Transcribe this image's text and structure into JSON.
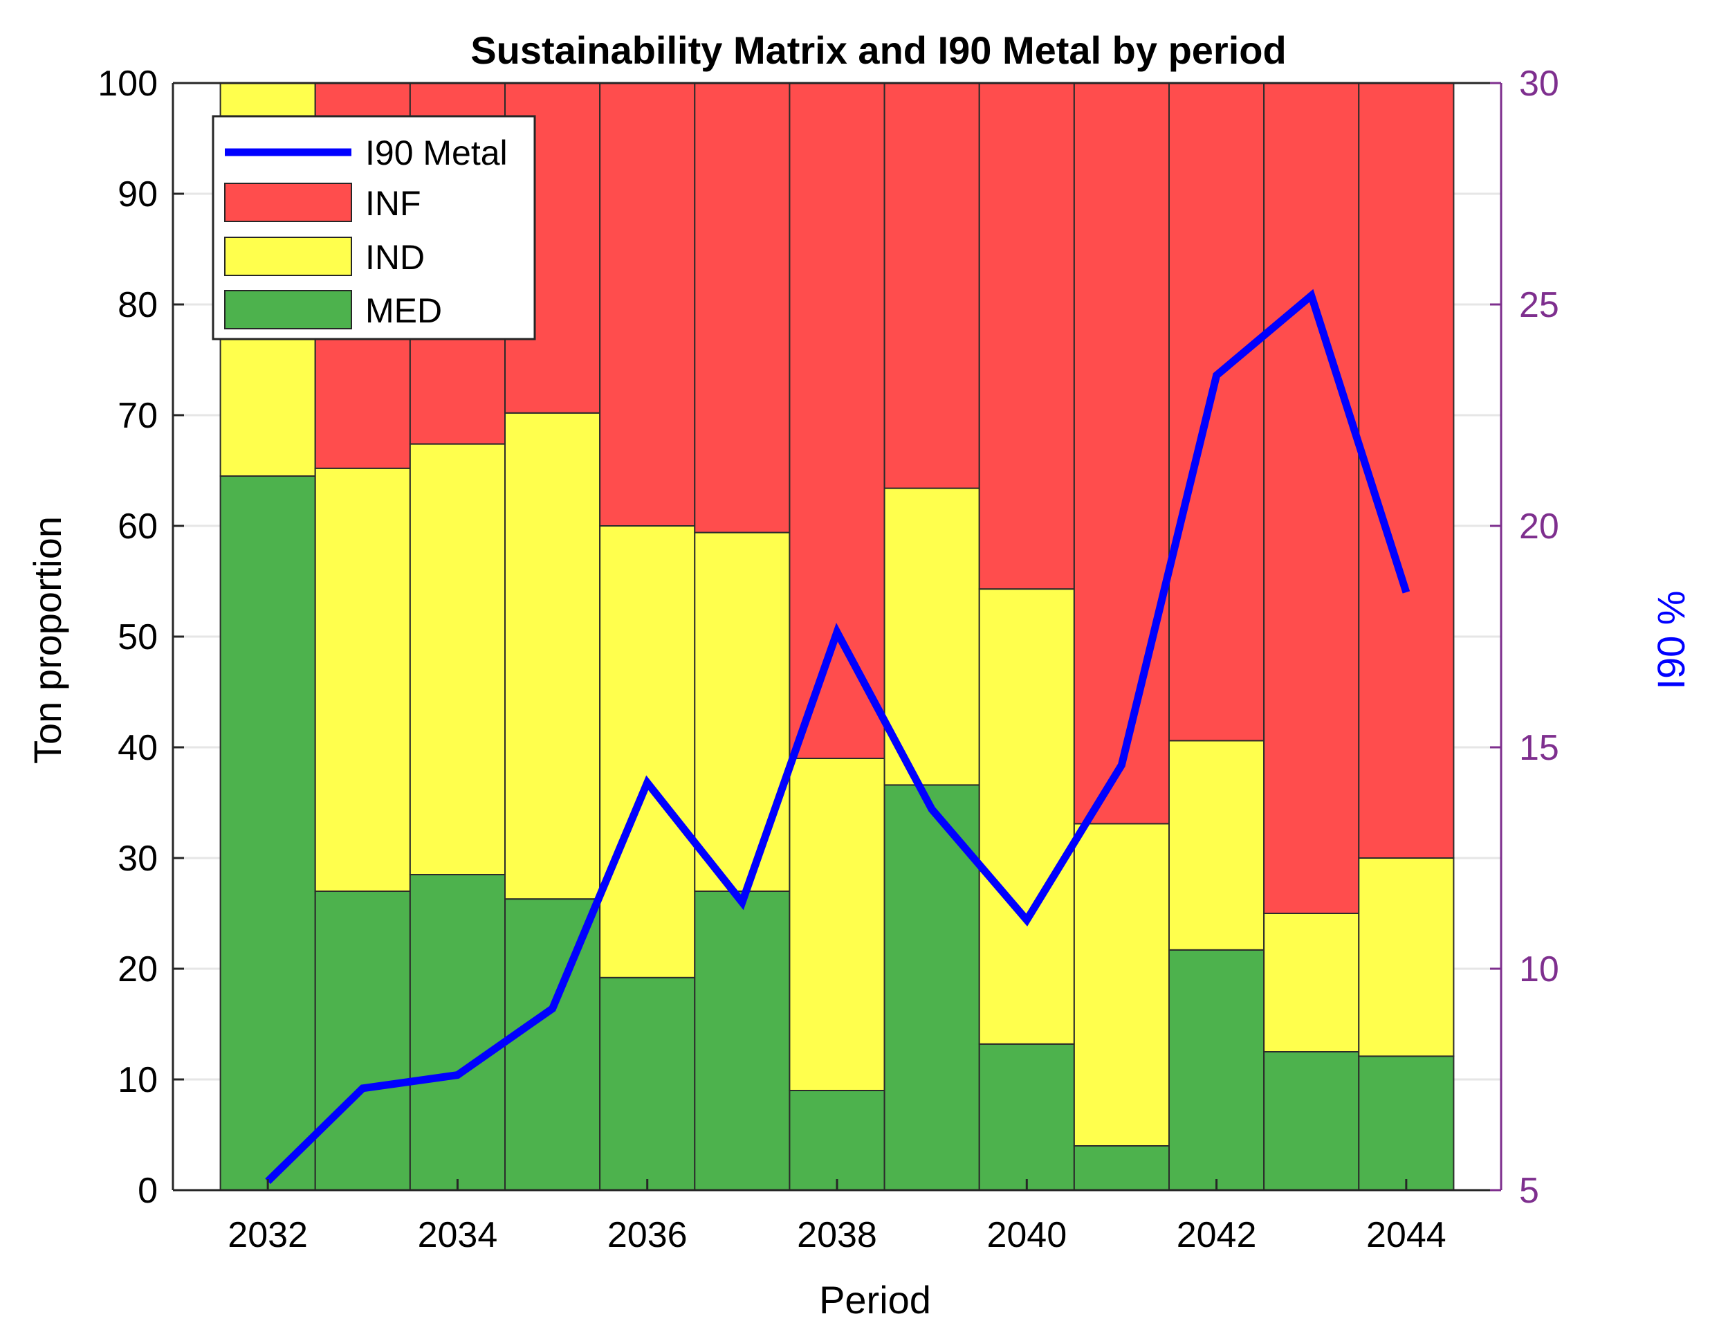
{
  "chart_data": {
    "type": "bar",
    "stacked": true,
    "title": "Sustainability Matrix and I90 Metal by period",
    "xlabel": "Period",
    "ylabel": "Ton proportion",
    "y2label": "I90 %",
    "categories": [
      2032,
      2033,
      2034,
      2035,
      2036,
      2037,
      2038,
      2039,
      2040,
      2041,
      2042,
      2043,
      2044
    ],
    "x_ticks": [
      "2032",
      "2034",
      "2036",
      "2038",
      "2040",
      "2042",
      "2044"
    ],
    "ylim": [
      0,
      100
    ],
    "y_ticks": [
      "0",
      "10",
      "20",
      "30",
      "40",
      "50",
      "60",
      "70",
      "80",
      "90",
      "100"
    ],
    "y2lim": [
      5,
      30
    ],
    "y2_ticks": [
      "5",
      "10",
      "15",
      "20",
      "25",
      "30"
    ],
    "grid": "horizontal",
    "legend_position": "top-left",
    "series": [
      {
        "name": "MED",
        "color": "#4db24d",
        "values": [
          64.5,
          27,
          28.5,
          26.3,
          19.2,
          27,
          9,
          36.6,
          13.2,
          4,
          21.7,
          12.5,
          12.1
        ]
      },
      {
        "name": "IND",
        "color": "#ffff4d",
        "values": [
          35.5,
          38.2,
          38.9,
          43.9,
          40.8,
          32.4,
          30,
          26.8,
          41.1,
          29.1,
          18.9,
          12.5,
          17.9
        ]
      },
      {
        "name": "INF",
        "color": "#ff4d4d",
        "values": [
          0,
          34.8,
          32.6,
          29.8,
          40,
          40.6,
          61,
          36.6,
          45.7,
          66.9,
          59.4,
          75,
          70
        ]
      }
    ],
    "line_series": {
      "name": "I90 Metal",
      "color": "#0000ff",
      "axis": "right",
      "values": [
        5.2,
        7.3,
        7.6,
        9.1,
        14.2,
        11.5,
        17.6,
        13.6,
        11.1,
        14.6,
        23.4,
        25.2,
        18.5
      ]
    },
    "legend_order": [
      "I90 Metal",
      "INF",
      "IND",
      "MED"
    ]
  },
  "colors": {
    "right_axis": "#7e2f8e",
    "right_axis_label": "#0000ff",
    "grid": "#e6e6e6"
  }
}
